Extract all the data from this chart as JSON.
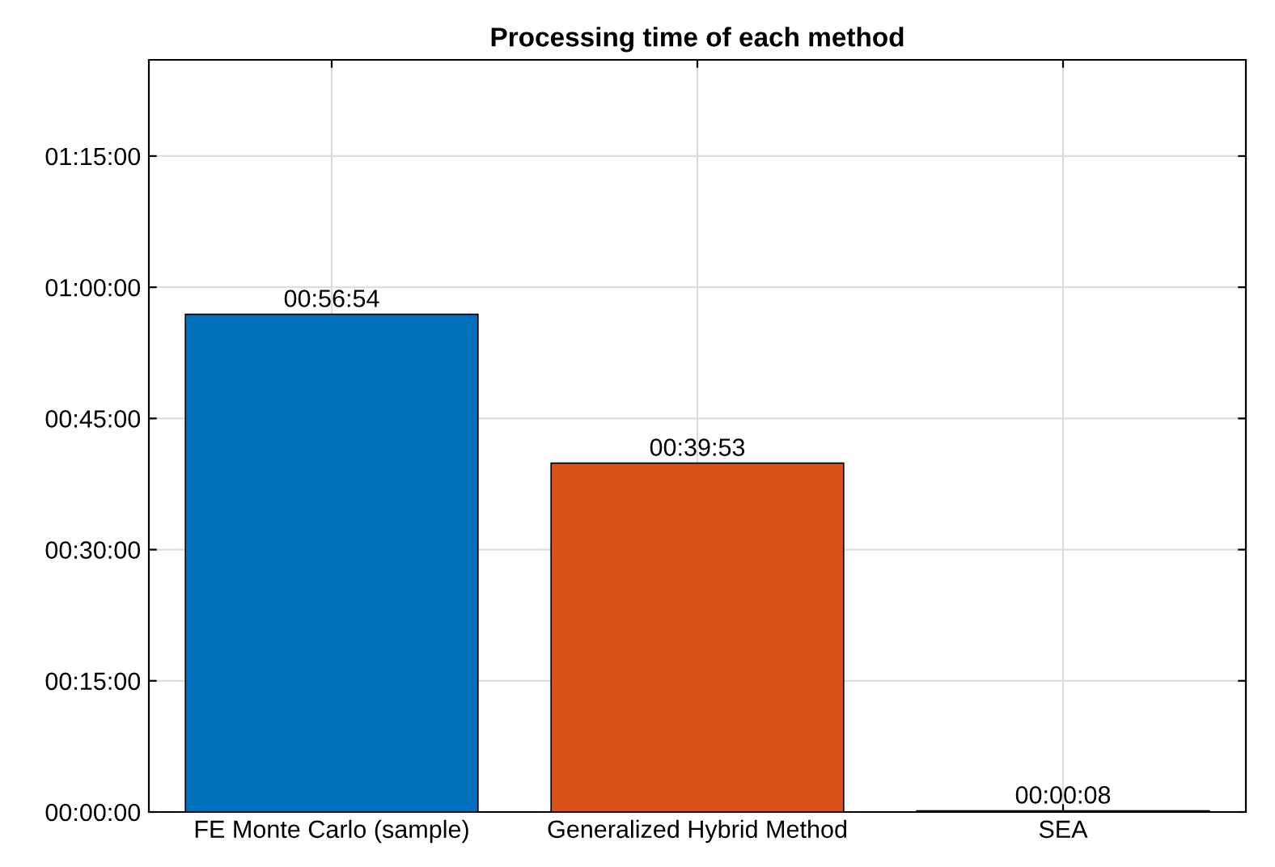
{
  "chart_data": {
    "type": "bar",
    "title": "Processing time of each method",
    "categories": [
      "FE Monte Carlo (sample)",
      "Generalized Hybrid Method",
      "SEA"
    ],
    "values": [
      3414,
      2393,
      8
    ],
    "colors": [
      "#0072bd",
      "#d95319",
      "#edb120"
    ],
    "value_labels": [
      "00:56:54",
      "00:39:53",
      "00:00:08"
    ],
    "ylim": [
      0,
      5160
    ],
    "yticks": [
      {
        "value": 0,
        "label": "00:00:00"
      },
      {
        "value": 900,
        "label": "00:15:00"
      },
      {
        "value": 1800,
        "label": "00:30:00"
      },
      {
        "value": 2700,
        "label": "00:45:00"
      },
      {
        "value": 3600,
        "label": "01:00:00"
      },
      {
        "value": 4500,
        "label": "01:15:00"
      }
    ],
    "grid": true
  }
}
